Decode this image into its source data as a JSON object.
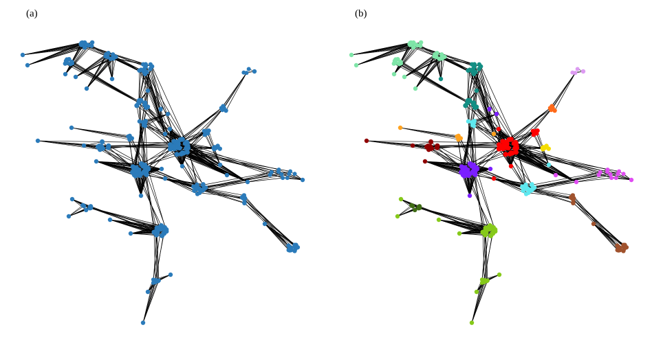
{
  "figure": {
    "panel_a_label": "(a)",
    "panel_b_label": "(b)"
  },
  "colors": {
    "edge": "#000000",
    "panel_a_node": "#2b7bba",
    "communities": [
      "#7fe5a8",
      "#138f84",
      "#5ee8ef",
      "#7b1fff",
      "#ffa21f",
      "#8f0000",
      "#ff0000",
      "#f5dd00",
      "#e04cf2",
      "#dd9bf2",
      "#ff6a1a",
      "#a0522d",
      "#86c91a",
      "#3f6b14"
    ]
  }
}
